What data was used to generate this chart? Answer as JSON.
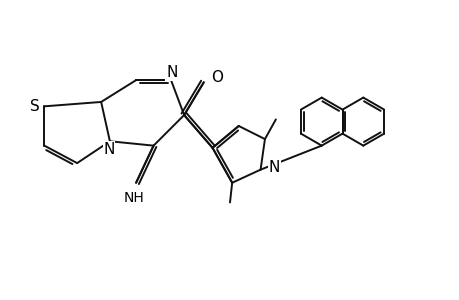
{
  "bg_color": "#ffffff",
  "bond_color": "#111111",
  "line_width": 1.4,
  "font_size": 10,
  "figsize": [
    4.6,
    3.0
  ],
  "dpi": 100,
  "xlim": [
    -1.0,
    9.5
  ],
  "ylim": [
    -0.5,
    5.5
  ]
}
